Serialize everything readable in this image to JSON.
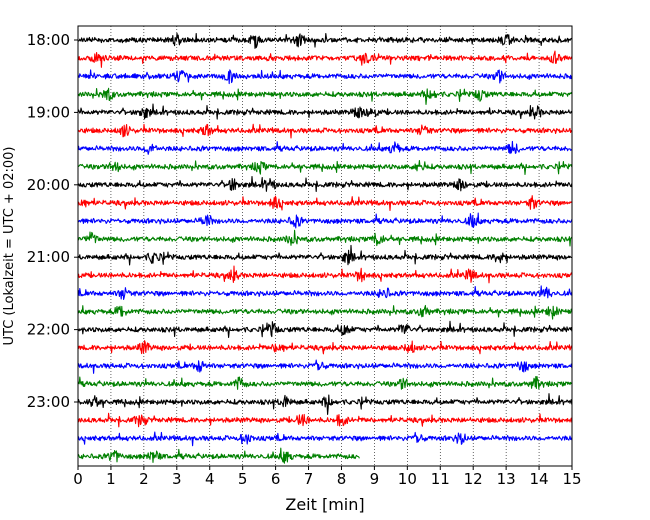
{
  "chart_data": {
    "type": "line",
    "chart_kind": "helicorder-seismogram",
    "xlabel": "Zeit  [min]",
    "ylabel": "UTC (Lokalzeit = UTC + 02:00)",
    "x_ticks": [
      0,
      1,
      2,
      3,
      4,
      5,
      6,
      7,
      8,
      9,
      10,
      11,
      12,
      13,
      14,
      15
    ],
    "xlim": [
      0,
      15
    ],
    "x_grid": "dotted vertical at each minute",
    "y_ticks": [
      "18:00",
      "19:00",
      "20:00",
      "21:00",
      "22:00",
      "23:00"
    ],
    "line_interval_minutes": 15,
    "trace_colors": [
      "#000000",
      "#ff0000",
      "#0000ff",
      "#008000"
    ],
    "series": [
      {
        "start": "18:00",
        "color": "#000000",
        "x_end": 15,
        "burst_at": [
          3.0,
          5.4,
          6.7,
          13.0
        ]
      },
      {
        "start": "18:15",
        "color": "#ff0000",
        "x_end": 15,
        "burst_at": [
          0.6,
          8.8,
          14.5
        ]
      },
      {
        "start": "18:30",
        "color": "#0000ff",
        "x_end": 15,
        "burst_at": [
          3.1,
          4.6,
          12.8
        ]
      },
      {
        "start": "18:45",
        "color": "#008000",
        "x_end": 15,
        "burst_at": [
          0.9,
          10.7,
          12.2
        ]
      },
      {
        "start": "19:00",
        "color": "#000000",
        "x_end": 15,
        "burst_at": [
          2.0,
          8.5,
          8.9,
          13.9
        ]
      },
      {
        "start": "19:15",
        "color": "#ff0000",
        "x_end": 15,
        "burst_at": [
          1.4,
          3.9,
          10.5
        ]
      },
      {
        "start": "19:30",
        "color": "#0000ff",
        "x_end": 15,
        "burst_at": [
          2.2,
          9.6,
          13.2
        ]
      },
      {
        "start": "19:45",
        "color": "#008000",
        "x_end": 15,
        "burst_at": [
          1.1,
          5.5,
          10.4
        ]
      },
      {
        "start": "20:00",
        "color": "#000000",
        "x_end": 15,
        "burst_at": [
          4.7,
          5.8,
          11.6
        ]
      },
      {
        "start": "20:15",
        "color": "#ff0000",
        "x_end": 15,
        "burst_at": [
          0.1,
          6.0,
          13.8
        ]
      },
      {
        "start": "20:30",
        "color": "#0000ff",
        "x_end": 15,
        "burst_at": [
          3.9,
          6.6,
          12.0
        ]
      },
      {
        "start": "20:45",
        "color": "#008000",
        "x_end": 15,
        "burst_at": [
          0.4,
          6.5,
          9.1
        ]
      },
      {
        "start": "21:00",
        "color": "#000000",
        "x_end": 15,
        "burst_at": [
          2.3,
          8.2,
          12.8
        ]
      },
      {
        "start": "21:15",
        "color": "#ff0000",
        "x_end": 15,
        "burst_at": [
          4.7,
          8.6,
          11.9
        ]
      },
      {
        "start": "21:30",
        "color": "#0000ff",
        "x_end": 15,
        "burst_at": [
          1.4,
          9.3,
          14.2
        ]
      },
      {
        "start": "21:45",
        "color": "#008000",
        "x_end": 15,
        "burst_at": [
          1.3,
          10.5,
          14.4
        ]
      },
      {
        "start": "22:00",
        "color": "#000000",
        "x_end": 15,
        "burst_at": [
          5.9,
          8.1,
          9.9
        ]
      },
      {
        "start": "22:15",
        "color": "#ff0000",
        "x_end": 15,
        "burst_at": [
          2.0,
          6.1,
          10.1
        ]
      },
      {
        "start": "22:30",
        "color": "#0000ff",
        "x_end": 15,
        "burst_at": [
          3.7,
          7.3,
          13.5
        ]
      },
      {
        "start": "22:45",
        "color": "#008000",
        "x_end": 15,
        "burst_at": [
          4.9,
          9.9,
          13.9
        ]
      },
      {
        "start": "23:00",
        "color": "#000000",
        "x_end": 15,
        "burst_at": [
          0.5,
          6.3,
          7.6
        ]
      },
      {
        "start": "23:15",
        "color": "#ff0000",
        "x_end": 15,
        "burst_at": [
          1.9,
          6.8,
          8.0
        ]
      },
      {
        "start": "23:30",
        "color": "#0000ff",
        "x_end": 15,
        "burst_at": [
          5.1,
          10.3,
          11.6
        ]
      },
      {
        "start": "23:45",
        "color": "#008000",
        "x_end": 8.55,
        "burst_at": [
          1.1,
          2.3,
          6.3
        ]
      }
    ]
  }
}
